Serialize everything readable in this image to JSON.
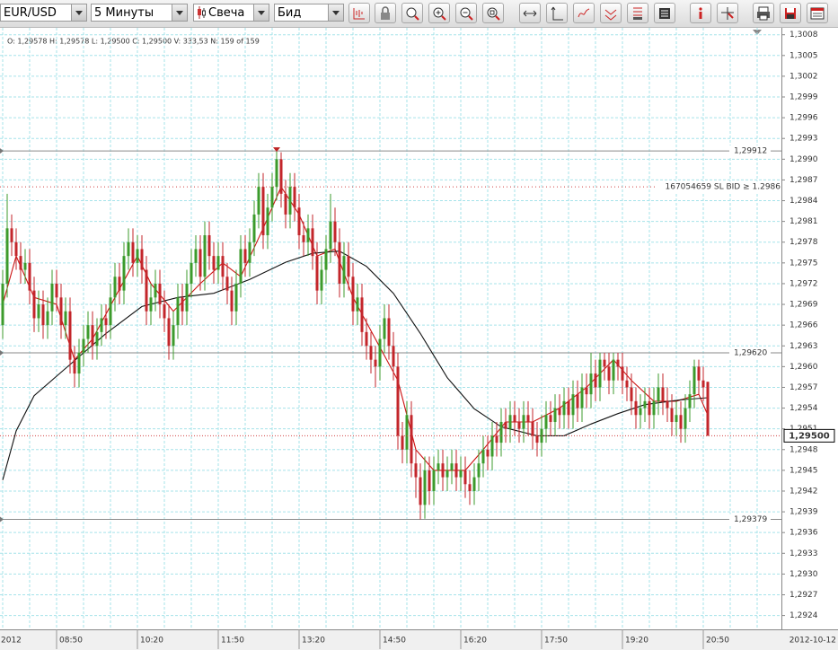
{
  "toolbar": {
    "symbol": "EUR/USD",
    "period": "5 Минуты",
    "chart_style": "Свеча",
    "side": "Бид"
  },
  "chart_data": {
    "type": "candlestick",
    "info": "O: 1,29578  H: 1,29578  L: 1,29500  C: 1,29500  V: 333,53  N: 159 of 159",
    "date_left": "2012",
    "date_right": "2012-10-12",
    "up_color": "#3c9b2c",
    "down_color": "#c3262b",
    "grid": true,
    "xlim": [
      -0.6,
      173.4
    ],
    "ylim": [
      1.2922,
      1.3009
    ],
    "xticks": [
      {
        "value": 12,
        "label": "08:50"
      },
      {
        "value": 30,
        "label": "10:20"
      },
      {
        "value": 48,
        "label": "11:50"
      },
      {
        "value": 66,
        "label": "13:20"
      },
      {
        "value": 84,
        "label": "14:50"
      },
      {
        "value": 102,
        "label": "16:20"
      },
      {
        "value": 120,
        "label": "17:50"
      },
      {
        "value": 138,
        "label": "19:20"
      },
      {
        "value": 156,
        "label": "20:50"
      }
    ],
    "yticks": [
      {
        "value": 1.2924,
        "label": "1,2924"
      },
      {
        "value": 1.2927,
        "label": "1,2927"
      },
      {
        "value": 1.293,
        "label": "1,2930"
      },
      {
        "value": 1.2933,
        "label": "1,2933"
      },
      {
        "value": 1.2936,
        "label": "1,2936"
      },
      {
        "value": 1.2939,
        "label": "1,2939"
      },
      {
        "value": 1.2942,
        "label": "1,2942"
      },
      {
        "value": 1.2945,
        "label": "1,2945"
      },
      {
        "value": 1.2948,
        "label": "1,2948"
      },
      {
        "value": 1.2951,
        "label": "1,2951"
      },
      {
        "value": 1.2954,
        "label": "1,2954"
      },
      {
        "value": 1.2957,
        "label": "1,2957"
      },
      {
        "value": 1.296,
        "label": "1,2960"
      },
      {
        "value": 1.2963,
        "label": "1,2963"
      },
      {
        "value": 1.2966,
        "label": "1,2966"
      },
      {
        "value": 1.2969,
        "label": "1,2969"
      },
      {
        "value": 1.2972,
        "label": "1,2972"
      },
      {
        "value": 1.2975,
        "label": "1,2975"
      },
      {
        "value": 1.2978,
        "label": "1,2978"
      },
      {
        "value": 1.2981,
        "label": "1,2981"
      },
      {
        "value": 1.2984,
        "label": "1,2984"
      },
      {
        "value": 1.2987,
        "label": "1,2987"
      },
      {
        "value": 1.299,
        "label": "1,2990"
      },
      {
        "value": 1.2993,
        "label": "1,2993"
      },
      {
        "value": 1.2996,
        "label": "1,2996"
      },
      {
        "value": 1.2999,
        "label": "1,2999"
      },
      {
        "value": 1.3002,
        "label": "1,3002"
      },
      {
        "value": 1.3005,
        "label": "1,3005"
      },
      {
        "value": 1.3008,
        "label": "1,3008"
      }
    ],
    "levels": [
      {
        "value": 1.29912,
        "label": "1,29912"
      },
      {
        "value": 1.2962,
        "label": "1,29620"
      },
      {
        "value": 1.29379,
        "label": "1,29379"
      }
    ],
    "order_line": {
      "value": 1.2986,
      "label": "167054659 SL BID ≥ 1.2986",
      "color": "#d04040"
    },
    "current_price": {
      "value": 1.295,
      "label": "1,29500",
      "color": "#d04040"
    },
    "lines": [
      {
        "color": "#cc1111",
        "x": [
          0,
          3,
          7,
          12,
          16,
          20,
          25,
          30,
          33,
          38,
          44,
          49,
          53,
          58,
          62,
          66,
          70,
          74,
          78,
          83,
          88,
          92,
          96,
          103,
          107,
          112,
          118,
          124,
          130,
          136,
          140,
          145,
          150,
          155,
          157
        ],
        "values": [
          1.2969,
          1.2976,
          1.297,
          1.2969,
          1.2961,
          1.2964,
          1.297,
          1.2976,
          1.2972,
          1.2968,
          1.2972,
          1.2975,
          1.2973,
          1.298,
          1.2986,
          1.2982,
          1.2976,
          1.2977,
          1.297,
          1.2964,
          1.2958,
          1.2948,
          1.2945,
          1.2945,
          1.2948,
          1.2952,
          1.2952,
          1.2954,
          1.2957,
          1.2961,
          1.2958,
          1.2955,
          1.2955,
          1.2956,
          1.2953
        ]
      },
      {
        "color": "#111111",
        "x": [
          0,
          3,
          7,
          15,
          23,
          31,
          39,
          47,
          55,
          63,
          69,
          75,
          81,
          87,
          93,
          99,
          105,
          111,
          119,
          125,
          131,
          137,
          143,
          151,
          157
        ],
        "values": [
          1.29436,
          1.29507,
          1.29558,
          1.29603,
          1.29648,
          1.29687,
          1.297,
          1.29706,
          1.29726,
          1.29751,
          1.29764,
          1.29767,
          1.29745,
          1.29706,
          1.29648,
          1.29584,
          1.29539,
          1.29513,
          1.295,
          1.295,
          1.29517,
          1.29532,
          1.29545,
          1.29552,
          1.29555
        ]
      }
    ],
    "candles": [
      [
        1.2966,
        1.2974,
        1.2964,
        1.2972
      ],
      [
        1.2972,
        1.2985,
        1.297,
        1.298
      ],
      [
        1.298,
        1.2982,
        1.2976,
        1.2978
      ],
      [
        1.2978,
        1.298,
        1.2974,
        1.2976
      ],
      [
        1.2976,
        1.2978,
        1.2972,
        1.2974
      ],
      [
        1.2974,
        1.2977,
        1.2972,
        1.2975
      ],
      [
        1.2975,
        1.2977,
        1.2969,
        1.2971
      ],
      [
        1.2971,
        1.2973,
        1.2965,
        1.2967
      ],
      [
        1.2967,
        1.2971,
        1.2965,
        1.2969
      ],
      [
        1.2969,
        1.2971,
        1.2964,
        1.2966
      ],
      [
        1.2966,
        1.297,
        1.2964,
        1.2968
      ],
      [
        1.2968,
        1.2974,
        1.2966,
        1.2972
      ],
      [
        1.2972,
        1.2974,
        1.2968,
        1.297
      ],
      [
        1.297,
        1.2972,
        1.2964,
        1.2966
      ],
      [
        1.2966,
        1.297,
        1.2964,
        1.2968
      ],
      [
        1.2968,
        1.297,
        1.2959,
        1.2961
      ],
      [
        1.2961,
        1.2963,
        1.2957,
        1.2959
      ],
      [
        1.2959,
        1.2964,
        1.2957,
        1.2962
      ],
      [
        1.2962,
        1.2966,
        1.296,
        1.2964
      ],
      [
        1.2964,
        1.2968,
        1.2962,
        1.2966
      ],
      [
        1.2966,
        1.2968,
        1.2961,
        1.2963
      ],
      [
        1.2963,
        1.2967,
        1.2961,
        1.2965
      ],
      [
        1.2965,
        1.2969,
        1.2963,
        1.2967
      ],
      [
        1.2967,
        1.2969,
        1.2964,
        1.2966
      ],
      [
        1.2966,
        1.2972,
        1.2964,
        1.297
      ],
      [
        1.297,
        1.2975,
        1.2968,
        1.2973
      ],
      [
        1.2973,
        1.2975,
        1.2969,
        1.2971
      ],
      [
        1.2971,
        1.2978,
        1.2969,
        1.2976
      ],
      [
        1.2976,
        1.298,
        1.2974,
        1.2978
      ],
      [
        1.2978,
        1.298,
        1.2973,
        1.2975
      ],
      [
        1.2975,
        1.2979,
        1.2973,
        1.2977
      ],
      [
        1.2977,
        1.2979,
        1.2972,
        1.2974
      ],
      [
        1.2974,
        1.2976,
        1.2966,
        1.2968
      ],
      [
        1.2968,
        1.2972,
        1.2966,
        1.297
      ],
      [
        1.297,
        1.2974,
        1.2968,
        1.2972
      ],
      [
        1.2972,
        1.2974,
        1.2967,
        1.2969
      ],
      [
        1.2969,
        1.2971,
        1.2965,
        1.2967
      ],
      [
        1.2967,
        1.2969,
        1.2961,
        1.2963
      ],
      [
        1.2963,
        1.2968,
        1.2961,
        1.2966
      ],
      [
        1.2966,
        1.2972,
        1.2964,
        1.297
      ],
      [
        1.297,
        1.2972,
        1.2966,
        1.2968
      ],
      [
        1.2968,
        1.2974,
        1.2966,
        1.2972
      ],
      [
        1.2972,
        1.2977,
        1.297,
        1.2975
      ],
      [
        1.2975,
        1.2979,
        1.2973,
        1.2977
      ],
      [
        1.2977,
        1.2979,
        1.2971,
        1.2973
      ],
      [
        1.2973,
        1.2981,
        1.2971,
        1.2979
      ],
      [
        1.2979,
        1.2981,
        1.2974,
        1.2976
      ],
      [
        1.2976,
        1.2978,
        1.2972,
        1.2974
      ],
      [
        1.2974,
        1.2978,
        1.2972,
        1.2976
      ],
      [
        1.2976,
        1.2978,
        1.2971,
        1.2973
      ],
      [
        1.2973,
        1.2975,
        1.2969,
        1.2971
      ],
      [
        1.2971,
        1.2973,
        1.2966,
        1.2968
      ],
      [
        1.2968,
        1.2974,
        1.2966,
        1.2972
      ],
      [
        1.2972,
        1.2979,
        1.297,
        1.2977
      ],
      [
        1.2977,
        1.2979,
        1.2973,
        1.2975
      ],
      [
        1.2975,
        1.298,
        1.2973,
        1.2978
      ],
      [
        1.2978,
        1.2984,
        1.2976,
        1.2982
      ],
      [
        1.2982,
        1.2988,
        1.298,
        1.2986
      ],
      [
        1.2986,
        1.2988,
        1.2977,
        1.2979
      ],
      [
        1.2979,
        1.2985,
        1.2977,
        1.2983
      ],
      [
        1.2983,
        1.2988,
        1.2981,
        1.2986
      ],
      [
        1.2986,
        1.29912,
        1.2984,
        1.299
      ],
      [
        1.299,
        1.2991,
        1.2983,
        1.2985
      ],
      [
        1.2985,
        1.2987,
        1.298,
        1.2982
      ],
      [
        1.2982,
        1.2988,
        1.298,
        1.2986
      ],
      [
        1.2986,
        1.2988,
        1.2981,
        1.2983
      ],
      [
        1.2983,
        1.2985,
        1.2977,
        1.2979
      ],
      [
        1.2979,
        1.2981,
        1.2976,
        1.2978
      ],
      [
        1.2978,
        1.2982,
        1.2976,
        1.298
      ],
      [
        1.298,
        1.2982,
        1.2974,
        1.2976
      ],
      [
        1.2976,
        1.2978,
        1.2969,
        1.2971
      ],
      [
        1.2971,
        1.2976,
        1.2969,
        1.2974
      ],
      [
        1.2974,
        1.2979,
        1.2972,
        1.2977
      ],
      [
        1.2977,
        1.2985,
        1.2975,
        1.2981
      ],
      [
        1.2981,
        1.2983,
        1.2976,
        1.2978
      ],
      [
        1.2978,
        1.298,
        1.297,
        1.2972
      ],
      [
        1.2972,
        1.2978,
        1.297,
        1.2976
      ],
      [
        1.2976,
        1.2978,
        1.2971,
        1.2973
      ],
      [
        1.2973,
        1.2975,
        1.2966,
        1.2968
      ],
      [
        1.2968,
        1.2972,
        1.2966,
        1.297
      ],
      [
        1.297,
        1.2972,
        1.2963,
        1.2965
      ],
      [
        1.2965,
        1.2967,
        1.2961,
        1.2963
      ],
      [
        1.2963,
        1.2965,
        1.2959,
        1.2961
      ],
      [
        1.2961,
        1.2963,
        1.2957,
        1.296
      ],
      [
        1.296,
        1.2966,
        1.2958,
        1.2964
      ],
      [
        1.2964,
        1.2969,
        1.2962,
        1.2967
      ],
      [
        1.2967,
        1.2969,
        1.2961,
        1.2963
      ],
      [
        1.2963,
        1.2965,
        1.2958,
        1.296
      ],
      [
        1.296,
        1.2962,
        1.2948,
        1.295
      ],
      [
        1.295,
        1.2952,
        1.2946,
        1.2948
      ],
      [
        1.2948,
        1.2955,
        1.2946,
        1.2953
      ],
      [
        1.2953,
        1.2955,
        1.2944,
        1.2946
      ],
      [
        1.2946,
        1.2948,
        1.2941,
        1.2944
      ],
      [
        1.2944,
        1.2946,
        1.29379,
        1.294
      ],
      [
        1.294,
        1.2947,
        1.2938,
        1.2945
      ],
      [
        1.2945,
        1.2947,
        1.294,
        1.2942
      ],
      [
        1.2942,
        1.2947,
        1.294,
        1.2945
      ],
      [
        1.2945,
        1.2948,
        1.2943,
        1.2946
      ],
      [
        1.2946,
        1.2948,
        1.2942,
        1.2944
      ],
      [
        1.2944,
        1.2947,
        1.2942,
        1.2945
      ],
      [
        1.2945,
        1.2948,
        1.2943,
        1.2946
      ],
      [
        1.2946,
        1.2948,
        1.2942,
        1.2944
      ],
      [
        1.2944,
        1.2947,
        1.2942,
        1.2945
      ],
      [
        1.2945,
        1.2947,
        1.2941,
        1.2943
      ],
      [
        1.2943,
        1.2945,
        1.294,
        1.2942
      ],
      [
        1.2942,
        1.2946,
        1.294,
        1.2944
      ],
      [
        1.2944,
        1.2948,
        1.2942,
        1.2946
      ],
      [
        1.2946,
        1.295,
        1.2944,
        1.2948
      ],
      [
        1.2948,
        1.295,
        1.2945,
        1.2947
      ],
      [
        1.2947,
        1.2952,
        1.2945,
        1.295
      ],
      [
        1.295,
        1.2952,
        1.2947,
        1.2949
      ],
      [
        1.2949,
        1.2954,
        1.2947,
        1.2952
      ],
      [
        1.2952,
        1.2954,
        1.2949,
        1.2951
      ],
      [
        1.2951,
        1.2955,
        1.2949,
        1.2953
      ],
      [
        1.2953,
        1.2955,
        1.295,
        1.2952
      ],
      [
        1.2952,
        1.2954,
        1.2949,
        1.2951
      ],
      [
        1.2951,
        1.2955,
        1.2949,
        1.2953
      ],
      [
        1.2953,
        1.2955,
        1.295,
        1.2952
      ],
      [
        1.2952,
        1.2954,
        1.2948,
        1.295
      ],
      [
        1.295,
        1.2952,
        1.2947,
        1.2949
      ],
      [
        1.2949,
        1.2953,
        1.2947,
        1.2951
      ],
      [
        1.2951,
        1.2955,
        1.2949,
        1.2953
      ],
      [
        1.2953,
        1.2955,
        1.295,
        1.2952
      ],
      [
        1.2952,
        1.2956,
        1.295,
        1.2954
      ],
      [
        1.2954,
        1.2956,
        1.2951,
        1.2953
      ],
      [
        1.2953,
        1.2957,
        1.2951,
        1.2955
      ],
      [
        1.2955,
        1.2957,
        1.2951,
        1.2953
      ],
      [
        1.2953,
        1.2958,
        1.2951,
        1.2956
      ],
      [
        1.2956,
        1.2958,
        1.2952,
        1.2954
      ],
      [
        1.2954,
        1.2959,
        1.2952,
        1.2957
      ],
      [
        1.2957,
        1.2959,
        1.2954,
        1.2956
      ],
      [
        1.2956,
        1.2962,
        1.2954,
        1.2959
      ],
      [
        1.2959,
        1.2961,
        1.2955,
        1.2957
      ],
      [
        1.2957,
        1.2962,
        1.2955,
        1.2961
      ],
      [
        1.2961,
        1.2962,
        1.2958,
        1.296
      ],
      [
        1.296,
        1.2962,
        1.2956,
        1.2958
      ],
      [
        1.2958,
        1.2962,
        1.2956,
        1.2961
      ],
      [
        1.2961,
        1.2962,
        1.2958,
        1.296
      ],
      [
        1.296,
        1.2962,
        1.2956,
        1.2958
      ],
      [
        1.2958,
        1.296,
        1.2955,
        1.2957
      ],
      [
        1.2957,
        1.2959,
        1.2953,
        1.2955
      ],
      [
        1.2955,
        1.2957,
        1.2951,
        1.2953
      ],
      [
        1.2953,
        1.2956,
        1.2951,
        1.2954
      ],
      [
        1.2954,
        1.2957,
        1.2952,
        1.2955
      ],
      [
        1.2955,
        1.2957,
        1.2951,
        1.2953
      ],
      [
        1.2953,
        1.2957,
        1.2951,
        1.2955
      ],
      [
        1.2955,
        1.2959,
        1.2953,
        1.2957
      ],
      [
        1.2957,
        1.2959,
        1.2953,
        1.2955
      ],
      [
        1.2955,
        1.2957,
        1.2952,
        1.2954
      ],
      [
        1.2954,
        1.2956,
        1.295,
        1.2952
      ],
      [
        1.2952,
        1.2955,
        1.295,
        1.2953
      ],
      [
        1.2953,
        1.2955,
        1.2949,
        1.2951
      ],
      [
        1.2951,
        1.2956,
        1.2949,
        1.2954
      ],
      [
        1.2954,
        1.2958,
        1.2952,
        1.2956
      ],
      [
        1.2956,
        1.2961,
        1.2954,
        1.296
      ],
      [
        1.296,
        1.2961,
        1.2956,
        1.2958
      ],
      [
        1.2958,
        1.296,
        1.2955,
        1.2957
      ],
      [
        1.29578,
        1.29578,
        1.295,
        1.295
      ]
    ]
  }
}
